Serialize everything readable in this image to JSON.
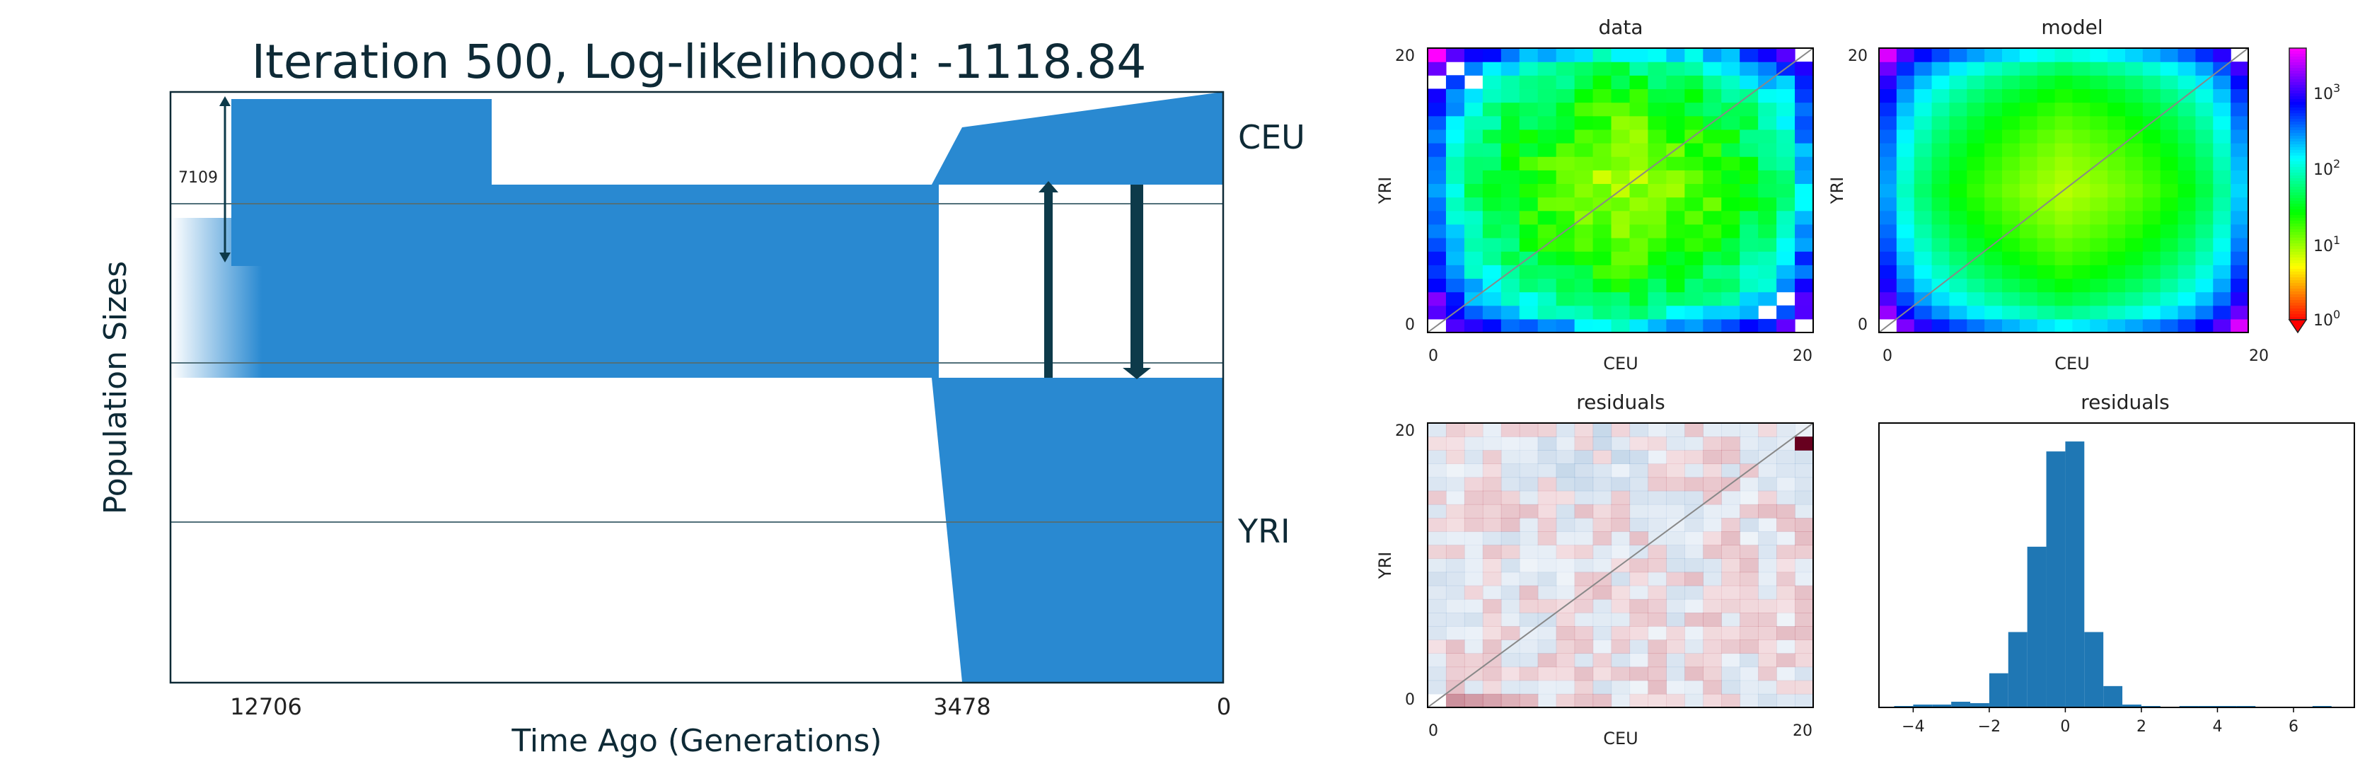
{
  "title": "Iteration 500, Log-likelihood: -1118.84",
  "demography": {
    "type": "area",
    "xlabel": "Time Ago (Generations)",
    "ylabel": "Population Sizes",
    "xticks": [
      "12706",
      "3478",
      "0"
    ],
    "size_annotation": "7109",
    "populations": [
      "CEU",
      "YRI"
    ],
    "color": "#2989d1",
    "arrow_color": "#0d3a4a"
  },
  "chart_data": [
    {
      "type": "heatmap",
      "title": "data",
      "xlabel": "CEU",
      "ylabel": "YRI",
      "xticks": [
        "0",
        "20"
      ],
      "yticks": [
        "0",
        "20"
      ],
      "grid_size": 21
    },
    {
      "type": "heatmap",
      "title": "model",
      "xlabel": "CEU",
      "ylabel": "YRI",
      "xticks": [
        "0",
        "20"
      ],
      "yticks": [
        "0",
        "20"
      ],
      "grid_size": 21,
      "colorbar": {
        "scale": "log",
        "ticks": [
          "10^0",
          "10^1",
          "10^2",
          "10^3"
        ]
      }
    },
    {
      "type": "heatmap",
      "title": "residuals",
      "xlabel": "CEU",
      "ylabel": "YRI",
      "xticks": [
        "0",
        "20"
      ],
      "yticks": [
        "0",
        "20"
      ],
      "grid_size": 21,
      "colormap": "RdBu"
    },
    {
      "type": "bar",
      "title": "residuals",
      "xticks": [
        "−4",
        "−2",
        "0",
        "2",
        "4",
        "6"
      ],
      "x": [
        -4.25,
        -3.75,
        -3.25,
        -2.75,
        -2.25,
        -1.75,
        -1.25,
        -0.75,
        -0.25,
        0.25,
        0.75,
        1.25,
        1.75,
        2.25,
        2.75,
        3.25,
        3.75,
        4.25,
        4.75,
        5.25,
        5.75,
        6.25,
        6.75
      ],
      "values": [
        1,
        2,
        2,
        4,
        3,
        24,
        53,
        113,
        180,
        187,
        53,
        15,
        2,
        1,
        0,
        1,
        1,
        1,
        1,
        0,
        0,
        0,
        1
      ],
      "color": "#1f77b4"
    }
  ]
}
